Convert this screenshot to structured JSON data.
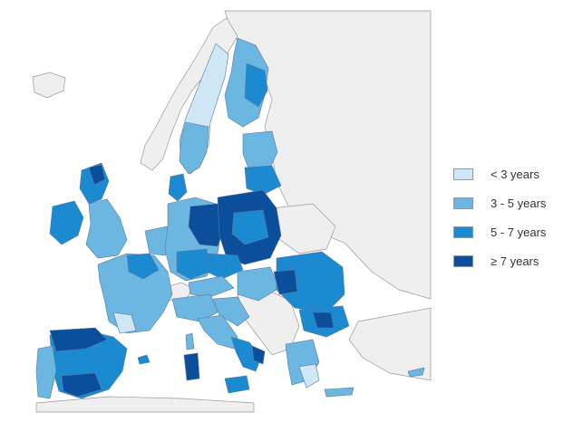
{
  "legend": {
    "items": [
      {
        "label": "< 3 years",
        "color": "#cfe6f5"
      },
      {
        "label": "3 - 5 years",
        "color": "#6cb6e2"
      },
      {
        "label": "5 - 7 years",
        "color": "#1c8ad0"
      },
      {
        "label": "≥ 7 years",
        "color": "#0b4f9c"
      }
    ]
  },
  "colors": {
    "sea": "#ffffff",
    "non_eu_land": "#efefef",
    "border": "#8a8a8a",
    "region_border": "#5a7aa0"
  }
}
